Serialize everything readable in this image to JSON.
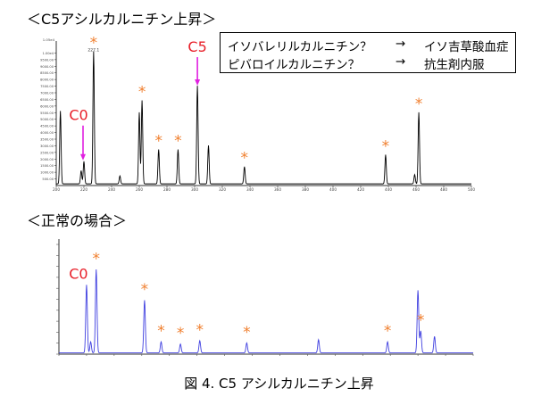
{
  "section1_title": "＜C5アシルカルニチン上昇＞",
  "section2_title": "＜正常の場合＞",
  "caption": "図 4.  C5 アシルカルニチン上昇",
  "legend": [
    {
      "text": "イソバレリルカルニチン？",
      "arrow": "→",
      "result": "イソ吉草酸血症"
    },
    {
      "text": "ピバロイルカルニチン？",
      "arrow": "→",
      "result": "抗生剤内服"
    }
  ],
  "colors": {
    "asterisk": "#f08030",
    "label": "#e8202a",
    "arrow": "#e020e0",
    "trace1": "#000000",
    "trace2": "#4040e0",
    "axis": "#333333"
  },
  "chart_data": [
    {
      "type": "line",
      "title": "＜C5アシルカルニチン上昇＞",
      "xlim": [
        200,
        500
      ],
      "ylim": [
        0,
        10500
      ],
      "x_ticks": [
        200,
        220,
        240,
        260,
        280,
        300,
        320,
        340,
        360,
        380,
        400,
        420,
        440,
        460,
        480,
        500
      ],
      "x_tick_labels": [
        "200",
        "220",
        "240",
        "260",
        "280",
        "300",
        "320",
        "340",
        "360",
        "380",
        "400",
        "420",
        "440",
        "460",
        "480",
        "500"
      ],
      "y_ticks": [
        500,
        1000,
        1500,
        2000,
        2500,
        3000,
        3500,
        4000,
        4500,
        5000,
        5500,
        6000,
        6500,
        7000,
        7500,
        8000,
        8500,
        9000,
        9500,
        10000
      ],
      "y_tick_labels": [
        "500.00",
        "1000.00",
        "1500.00",
        "2000.00",
        "2500.00",
        "3000.00",
        "3500.00",
        "4000.00",
        "4500.00",
        "5000.00",
        "5500.00",
        "6000.00",
        "6500.00",
        "7000.00",
        "7500.00",
        "8000.00",
        "8500.00",
        "9000.00",
        "9500.00",
        "1.00e4"
      ],
      "ylabel_top": "1.05e4",
      "peaks": [
        {
          "x": 203,
          "y": 5500,
          "mark": "none"
        },
        {
          "x": 218,
          "y": 1000,
          "mark": "none"
        },
        {
          "x": 220,
          "y": 1700,
          "mark": "C0"
        },
        {
          "x": 227,
          "y": 10000,
          "mark": "asterisk",
          "label": "227.1"
        },
        {
          "x": 246,
          "y": 600,
          "mark": "none"
        },
        {
          "x": 260,
          "y": 5400,
          "mark": "none"
        },
        {
          "x": 262,
          "y": 6300,
          "mark": "asterisk"
        },
        {
          "x": 274,
          "y": 2600,
          "mark": "asterisk"
        },
        {
          "x": 288,
          "y": 2600,
          "mark": "asterisk"
        },
        {
          "x": 302,
          "y": 7400,
          "mark": "C5"
        },
        {
          "x": 310,
          "y": 2900,
          "mark": "none"
        },
        {
          "x": 336,
          "y": 1300,
          "mark": "asterisk"
        },
        {
          "x": 438,
          "y": 2200,
          "mark": "asterisk"
        },
        {
          "x": 459,
          "y": 700,
          "mark": "none"
        },
        {
          "x": 462,
          "y": 5400,
          "mark": "asterisk"
        }
      ]
    },
    {
      "type": "line",
      "title": "＜正常の場合＞",
      "xlim": [
        200,
        500
      ],
      "ylim": [
        0,
        100
      ],
      "peaks": [
        {
          "x": 220,
          "y": 62,
          "mark": "C0"
        },
        {
          "x": 223,
          "y": 10,
          "mark": "none"
        },
        {
          "x": 227,
          "y": 76,
          "mark": "asterisk"
        },
        {
          "x": 262,
          "y": 48,
          "mark": "asterisk"
        },
        {
          "x": 274,
          "y": 10,
          "mark": "asterisk"
        },
        {
          "x": 288,
          "y": 8,
          "mark": "asterisk"
        },
        {
          "x": 302,
          "y": 11,
          "mark": "asterisk"
        },
        {
          "x": 336,
          "y": 9,
          "mark": "asterisk"
        },
        {
          "x": 388,
          "y": 12,
          "mark": "none"
        },
        {
          "x": 438,
          "y": 10,
          "mark": "asterisk"
        },
        {
          "x": 460,
          "y": 57,
          "mark": "none"
        },
        {
          "x": 462,
          "y": 20,
          "mark": "asterisk"
        },
        {
          "x": 472,
          "y": 15,
          "mark": "none"
        }
      ]
    }
  ],
  "labels": {
    "c0": "C0",
    "c5": "C5",
    "asterisk": "*"
  }
}
